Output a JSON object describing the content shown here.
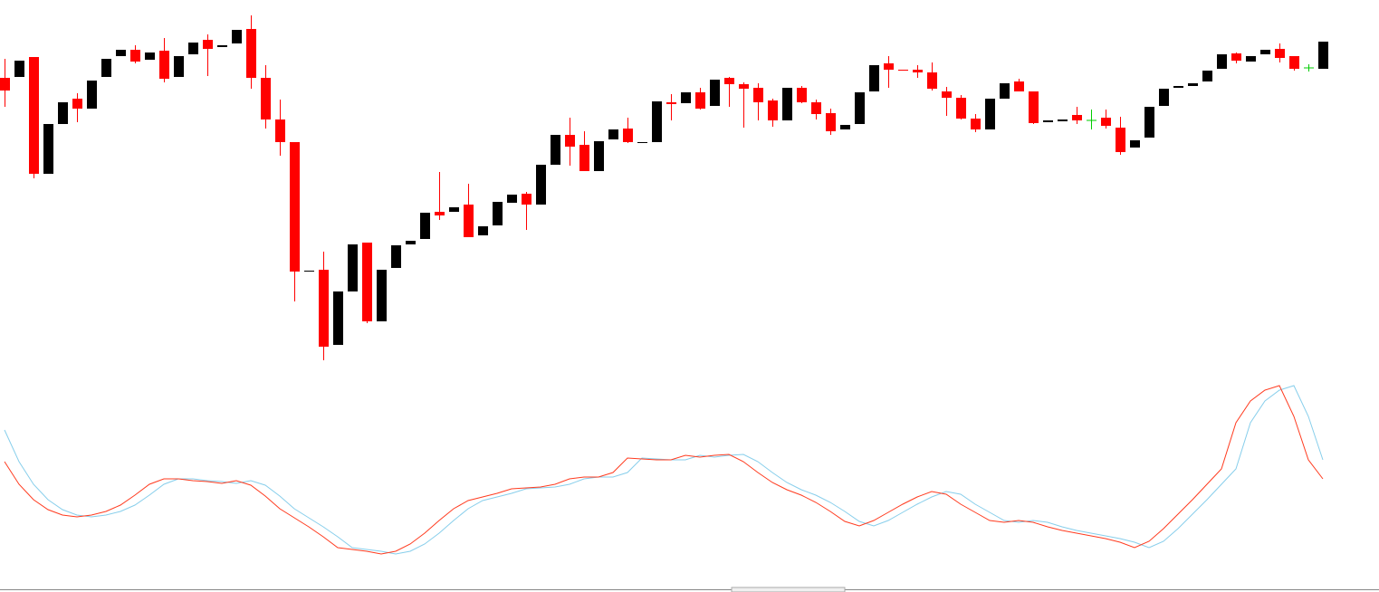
{
  "chart_data": [
    {
      "type": "candlestick",
      "up_color": "#000000",
      "down_color": "#ff0000",
      "doji_color": "#00cc00",
      "ylim": [
        20,
        420
      ],
      "open": [
        334,
        335,
        357,
        228,
        283,
        311,
        300,
        335,
        358,
        365,
        354,
        364,
        335,
        360,
        376,
        368,
        372,
        388,
        334,
        288,
        263,
        120,
        122,
        39,
        98,
        152,
        65,
        124,
        150,
        156,
        186,
        186,
        194,
        160,
        171,
        196,
        206,
        194,
        238,
        271,
        260,
        231,
        266,
        278,
        262,
        263,
        307,
        306,
        318,
        303,
        334,
        327,
        323,
        309,
        287,
        323,
        307,
        295,
        277,
        283,
        319,
        350,
        343,
        343,
        340,
        319,
        312,
        289,
        277,
        311,
        330,
        319,
        285,
        286,
        293,
        287,
        290,
        279,
        257,
        268,
        303,
        323,
        325,
        330,
        344,
        361,
        352,
        360,
        366,
        358,
        345,
        344
      ],
      "high": [
        355,
        353,
        357,
        283,
        307,
        317,
        331,
        355,
        365,
        370,
        362,
        378,
        358,
        373,
        382,
        370,
        387,
        403,
        348,
        310,
        263,
        121,
        142,
        98,
        150,
        152,
        122,
        149,
        154,
        185,
        230,
        191,
        217,
        170,
        197,
        205,
        208,
        238,
        271,
        290,
        275,
        264,
        277,
        290,
        263,
        308,
        316,
        318,
        323,
        332,
        335,
        329,
        328,
        311,
        323,
        325,
        310,
        300,
        282,
        318,
        348,
        358,
        343,
        348,
        351,
        324,
        315,
        294,
        311,
        328,
        333,
        319,
        287,
        288,
        302,
        299,
        299,
        291,
        265,
        302,
        322,
        325,
        328,
        342,
        360,
        362,
        358,
        365,
        372,
        358,
        349,
        374
      ],
      "low": [
        302,
        335,
        223,
        228,
        283,
        285,
        300,
        335,
        358,
        350,
        354,
        329,
        335,
        360,
        336,
        368,
        372,
        322,
        278,
        248,
        87,
        120,
        22,
        39,
        98,
        63,
        65,
        124,
        150,
        156,
        177,
        186,
        158,
        160,
        171,
        196,
        166,
        194,
        238,
        237,
        231,
        231,
        266,
        262,
        262,
        263,
        287,
        306,
        299,
        303,
        302,
        279,
        287,
        280,
        287,
        306,
        288,
        271,
        277,
        283,
        319,
        323,
        342,
        334,
        320,
        292,
        288,
        274,
        277,
        311,
        319,
        283,
        285,
        286,
        283,
        277,
        278,
        249,
        257,
        268,
        303,
        323,
        325,
        330,
        344,
        350,
        352,
        360,
        351,
        342,
        341,
        344
      ],
      "close": [
        320,
        353,
        228,
        283,
        307,
        300,
        331,
        355,
        365,
        352,
        362,
        333,
        358,
        373,
        366,
        370,
        387,
        334,
        288,
        263,
        120,
        121,
        37,
        98,
        150,
        65,
        122,
        149,
        154,
        185,
        182,
        191,
        158,
        170,
        197,
        205,
        194,
        238,
        271,
        258,
        231,
        264,
        277,
        263,
        263,
        308,
        305,
        318,
        300,
        332,
        327,
        322,
        307,
        287,
        323,
        307,
        294,
        275,
        282,
        318,
        348,
        343,
        342,
        340,
        322,
        312,
        289,
        277,
        311,
        328,
        319,
        284,
        287,
        288,
        287,
        287,
        281,
        252,
        265,
        302,
        322,
        325,
        328,
        342,
        360,
        353,
        358,
        365,
        356,
        344,
        345,
        374
      ]
    },
    {
      "type": "line",
      "ylim": [
        0,
        240
      ],
      "series": [
        {
          "color": "#87ceeb",
          "values": [
            165,
            130,
            105,
            88,
            77,
            71,
            69,
            71,
            75,
            82,
            93,
            105,
            111,
            111,
            109,
            108,
            106,
            109,
            104,
            92,
            78,
            68,
            58,
            47,
            35,
            33,
            31,
            28,
            31,
            39,
            51,
            65,
            78,
            87,
            91,
            95,
            100,
            101,
            102,
            105,
            111,
            113,
            113,
            118,
            134,
            133,
            132,
            132,
            137,
            135,
            137,
            138,
            130,
            118,
            107,
            99,
            93,
            85,
            75,
            64,
            59,
            65,
            74,
            83,
            91,
            97,
            94,
            83,
            74,
            65,
            63,
            65,
            63,
            58,
            54,
            51,
            48,
            45,
            41,
            35,
            42,
            56,
            72,
            88,
            105,
            122,
            173,
            197,
            209,
            214,
            180,
            132
          ]
        },
        {
          "color": "#ff3b1f",
          "values": [
            130,
            105,
            88,
            77,
            71,
            69,
            71,
            75,
            82,
            93,
            105,
            111,
            111,
            109,
            108,
            106,
            109,
            104,
            92,
            78,
            68,
            58,
            47,
            35,
            33,
            31,
            28,
            31,
            39,
            51,
            65,
            78,
            87,
            91,
            95,
            100,
            101,
            102,
            105,
            111,
            113,
            113,
            118,
            134,
            133,
            132,
            132,
            137,
            135,
            137,
            138,
            130,
            118,
            107,
            99,
            93,
            85,
            75,
            64,
            59,
            65,
            74,
            83,
            91,
            97,
            94,
            83,
            74,
            65,
            63,
            65,
            63,
            58,
            54,
            51,
            48,
            45,
            41,
            35,
            42,
            56,
            72,
            88,
            105,
            122,
            173,
            197,
            209,
            214,
            180,
            132,
            111
          ]
        }
      ]
    }
  ]
}
